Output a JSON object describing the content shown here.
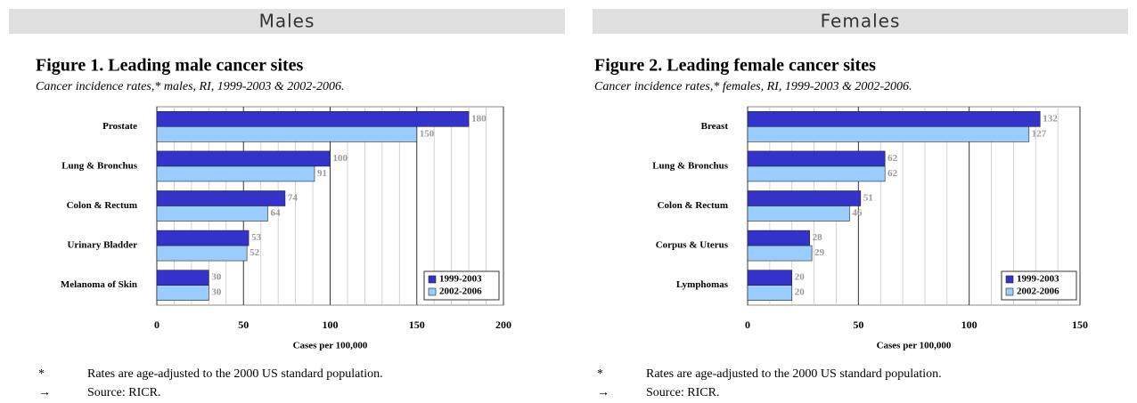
{
  "panels": [
    {
      "header": "Males",
      "notes": [
        {
          "marker": "*",
          "text": "Rates are age-adjusted to the 2000 US standard population."
        },
        {
          "marker": "→",
          "text": "Source: RICR."
        }
      ]
    },
    {
      "header": "Females",
      "notes": [
        {
          "marker": "*",
          "text": "Rates are age-adjusted to the 2000 US standard population."
        },
        {
          "marker": "→",
          "text": "Source: RICR."
        }
      ]
    }
  ],
  "chart_data": [
    {
      "type": "bar",
      "orientation": "horizontal",
      "title": "Figure 1. Leading male cancer sites",
      "subtitle": "Cancer incidence rates,* males, RI, 1999-2003 & 2002-2006.",
      "xlabel": "Cases per 100,000",
      "categories": [
        "Prostate",
        "Lung & Bronchus",
        "Colon & Rectum",
        "Urinary Bladder",
        "Melanoma of Skin"
      ],
      "series": [
        {
          "name": "1999-2003",
          "color": "#3333cc",
          "values": [
            180,
            100,
            74,
            53,
            30
          ]
        },
        {
          "name": "2002-2006",
          "color": "#99ccff",
          "values": [
            150,
            91,
            64,
            52,
            30
          ]
        }
      ],
      "xlim": [
        0,
        200
      ],
      "xticks": [
        0,
        50,
        100,
        150,
        200
      ],
      "xminor": [
        10,
        20,
        30,
        40,
        60,
        70,
        80,
        90,
        110,
        120,
        130,
        140,
        160,
        170,
        180,
        190
      ],
      "grid": true,
      "legend": "lower right"
    },
    {
      "type": "bar",
      "orientation": "horizontal",
      "title": "Figure 2. Leading female cancer sites",
      "subtitle": "Cancer incidence rates,* females, RI, 1999-2003 & 2002-2006.",
      "xlabel": "Cases per 100,000",
      "categories": [
        "Breast",
        "Lung & Bronchus",
        "Colon & Rectum",
        "Corpus & Uterus",
        "Lymphomas"
      ],
      "series": [
        {
          "name": "1999-2003",
          "color": "#3333cc",
          "values": [
            132,
            62,
            51,
            28,
            20
          ]
        },
        {
          "name": "2002-2006",
          "color": "#99ccff",
          "values": [
            127,
            62,
            46,
            29,
            20
          ]
        }
      ],
      "xlim": [
        0,
        150
      ],
      "xticks": [
        0,
        50,
        100,
        150
      ],
      "xminor": [
        10,
        20,
        30,
        40,
        60,
        70,
        80,
        90,
        110,
        120,
        130,
        140
      ],
      "grid": true,
      "legend": "lower right"
    }
  ]
}
